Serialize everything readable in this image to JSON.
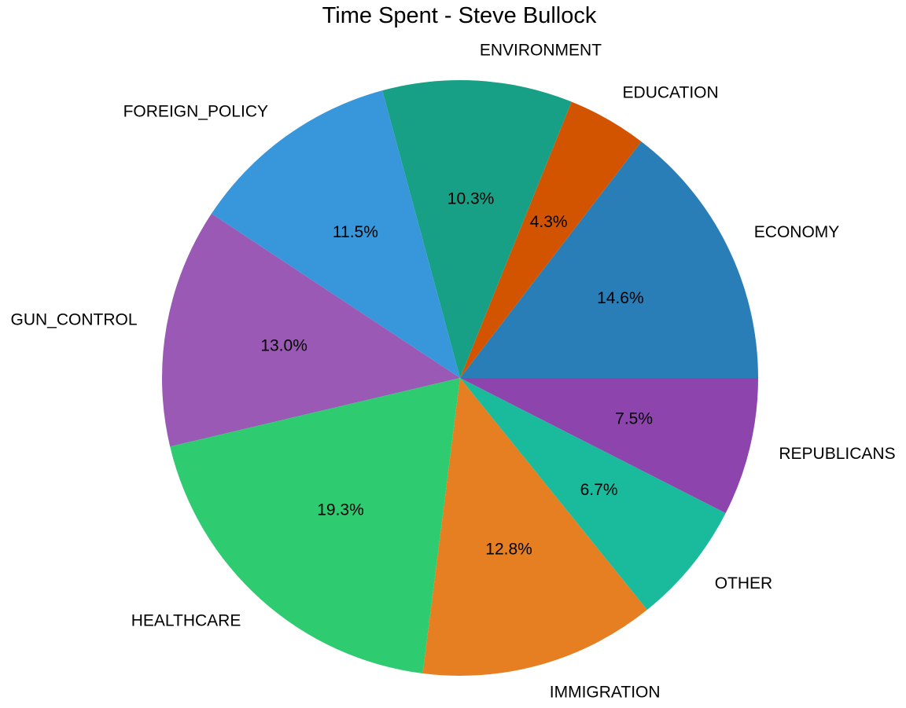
{
  "chart_data": {
    "type": "pie",
    "title": "Time Spent - Steve Bullock",
    "start_angle_deg": 0,
    "direction": "counterclockwise",
    "slices": [
      {
        "label": "ECONOMY",
        "value": 14.6,
        "pct_label": "14.6%",
        "color": "#2A7EB8"
      },
      {
        "label": "EDUCATION",
        "value": 4.3,
        "pct_label": "4.3%",
        "color": "#D35400"
      },
      {
        "label": "ENVIRONMENT",
        "value": 10.3,
        "pct_label": "10.3%",
        "color": "#17A085"
      },
      {
        "label": "FOREIGN_POLICY",
        "value": 11.5,
        "pct_label": "11.5%",
        "color": "#3797DA"
      },
      {
        "label": "GUN_CONTROL",
        "value": 13.0,
        "pct_label": "13.0%",
        "color": "#9A59B4"
      },
      {
        "label": "HEALTHCARE",
        "value": 19.3,
        "pct_label": "19.3%",
        "color": "#2ECB70"
      },
      {
        "label": "IMMIGRATION",
        "value": 12.8,
        "pct_label": "12.8%",
        "color": "#E57F22"
      },
      {
        "label": "OTHER",
        "value": 6.7,
        "pct_label": "6.7%",
        "color": "#1ABB9C"
      },
      {
        "label": "REPUBLICANS",
        "value": 7.5,
        "pct_label": "7.5%",
        "color": "#8D44AD"
      }
    ]
  }
}
